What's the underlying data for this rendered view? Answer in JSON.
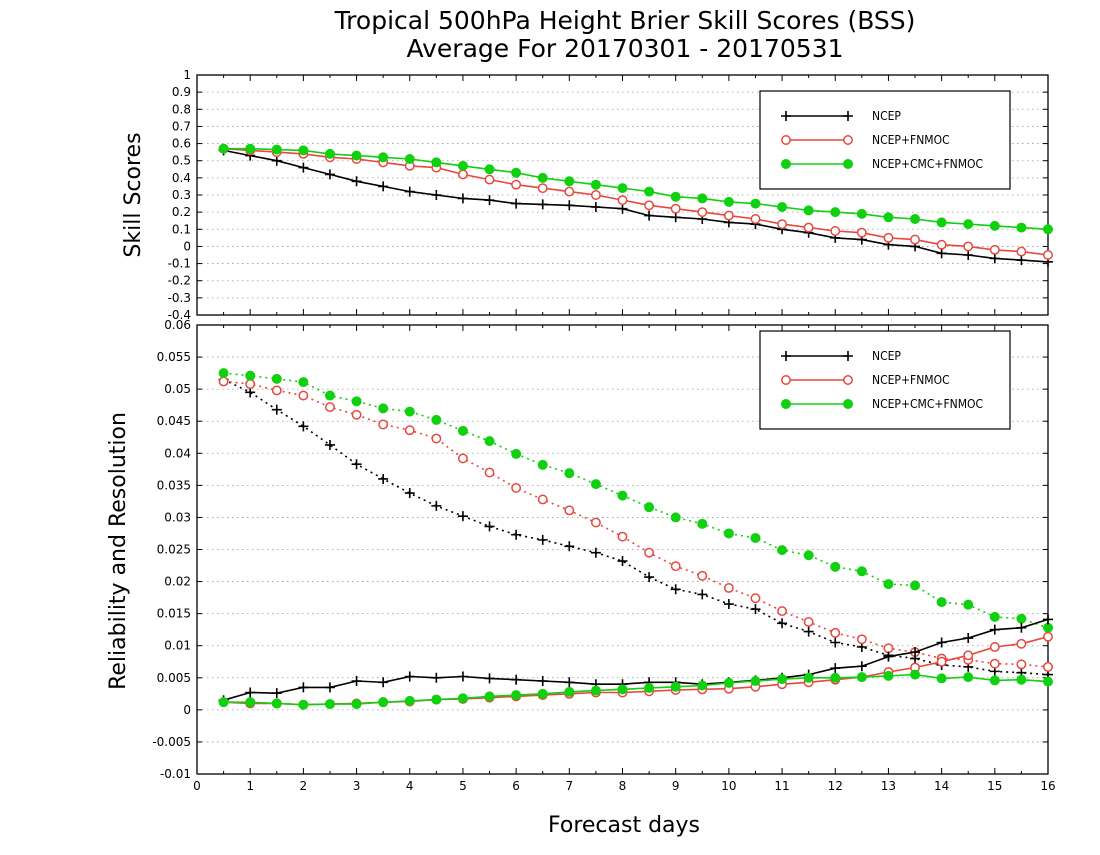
{
  "colors": {
    "NCEP": "#000000",
    "NCEP+FNMOC": "#e8473f",
    "NCEP+CMC+FNMOC": "#10d010",
    "grid": "#999999"
  },
  "chart_data": [
    {
      "type": "line",
      "title": "Tropical 500hPa Height Brier Skill Scores (BSS)",
      "subtitle": "Average For 20170301 - 20170531",
      "xlabel": "",
      "ylabel": "Skill Scores",
      "xlim": [
        0,
        16
      ],
      "ylim": [
        -0.4,
        1
      ],
      "yticks": [
        -0.4,
        -0.3,
        -0.2,
        -0.1,
        0,
        0.1,
        0.2,
        0.3,
        0.4,
        0.5,
        0.6,
        0.7,
        0.8,
        0.9,
        1
      ],
      "ytick_labels": [
        "-0.4",
        "-0.3",
        "-0.2",
        "-0.1",
        "0",
        "0.1",
        "0.2",
        "0.3",
        "0.4",
        "0.5",
        "0.6",
        "0.7",
        "0.8",
        "0.9",
        "1"
      ],
      "grid": "horizontal dotted",
      "legend": "top-right",
      "x": [
        0.5,
        1,
        1.5,
        2,
        2.5,
        3,
        3.5,
        4,
        4.5,
        5,
        5.5,
        6,
        6.5,
        7,
        7.5,
        8,
        8.5,
        9,
        9.5,
        10,
        10.5,
        11,
        11.5,
        12,
        12.5,
        13,
        13.5,
        14,
        14.5,
        15,
        15.5,
        16
      ],
      "series": [
        {
          "name": "NCEP",
          "marker": "plus",
          "line": "solid",
          "values": [
            0.56,
            0.53,
            0.5,
            0.46,
            0.42,
            0.38,
            0.35,
            0.32,
            0.3,
            0.28,
            0.27,
            0.25,
            0.245,
            0.24,
            0.23,
            0.22,
            0.18,
            0.17,
            0.16,
            0.14,
            0.13,
            0.1,
            0.08,
            0.05,
            0.04,
            0.01,
            0.0,
            -0.04,
            -0.05,
            -0.07,
            -0.08,
            -0.09
          ]
        },
        {
          "name": "NCEP+FNMOC",
          "marker": "open-circle",
          "line": "solid",
          "values": [
            0.57,
            0.56,
            0.55,
            0.54,
            0.52,
            0.51,
            0.49,
            0.47,
            0.46,
            0.42,
            0.39,
            0.36,
            0.34,
            0.32,
            0.3,
            0.27,
            0.24,
            0.22,
            0.2,
            0.18,
            0.16,
            0.13,
            0.11,
            0.09,
            0.08,
            0.05,
            0.04,
            0.01,
            0.0,
            -0.02,
            -0.03,
            -0.05
          ]
        },
        {
          "name": "NCEP+CMC+FNMOC",
          "marker": "filled-circle",
          "line": "solid",
          "values": [
            0.57,
            0.57,
            0.565,
            0.56,
            0.54,
            0.53,
            0.52,
            0.51,
            0.49,
            0.47,
            0.45,
            0.43,
            0.4,
            0.38,
            0.36,
            0.34,
            0.32,
            0.29,
            0.28,
            0.26,
            0.25,
            0.23,
            0.21,
            0.2,
            0.19,
            0.17,
            0.16,
            0.14,
            0.13,
            0.12,
            0.11,
            0.1
          ]
        }
      ]
    },
    {
      "type": "line",
      "title": "",
      "xlabel": "Forecast days",
      "ylabel": "Reliability and Resolution",
      "xlim": [
        0,
        16
      ],
      "ylim": [
        -0.01,
        0.06
      ],
      "xticks": [
        0,
        1,
        2,
        3,
        4,
        5,
        6,
        7,
        8,
        9,
        10,
        11,
        12,
        13,
        14,
        15,
        16
      ],
      "xtick_labels": [
        "0",
        "1",
        "2",
        "3",
        "4",
        "5",
        "6",
        "7",
        "8",
        "9",
        "10",
        "11",
        "12",
        "13",
        "14",
        "15",
        "16"
      ],
      "yticks": [
        -0.01,
        -0.005,
        0,
        0.005,
        0.01,
        0.015,
        0.02,
        0.025,
        0.03,
        0.035,
        0.04,
        0.045,
        0.05,
        0.055,
        0.06
      ],
      "ytick_labels": [
        "-0.01",
        "-0.005",
        "0",
        "0.005",
        "0.01",
        "0.015",
        "0.02",
        "0.025",
        "0.03",
        "0.035",
        "0.04",
        "0.045",
        "0.05",
        "0.055",
        "0.06"
      ],
      "grid": "horizontal dotted",
      "legend": "top-right",
      "x": [
        0.5,
        1,
        1.5,
        2,
        2.5,
        3,
        3.5,
        4,
        4.5,
        5,
        5.5,
        6,
        6.5,
        7,
        7.5,
        8,
        8.5,
        9,
        9.5,
        10,
        10.5,
        11,
        11.5,
        12,
        12.5,
        13,
        13.5,
        14,
        14.5,
        15,
        15.5,
        16
      ],
      "series": [
        {
          "name": "NCEP",
          "metric": "resolution",
          "marker": "plus",
          "line": "dotted",
          "values": [
            0.0515,
            0.0495,
            0.0468,
            0.0442,
            0.0413,
            0.0383,
            0.036,
            0.0338,
            0.0318,
            0.0302,
            0.0286,
            0.0273,
            0.0265,
            0.0255,
            0.0245,
            0.0232,
            0.0207,
            0.0188,
            0.018,
            0.0165,
            0.0157,
            0.0135,
            0.0122,
            0.0105,
            0.0098,
            0.0085,
            0.008,
            0.007,
            0.0067,
            0.006,
            0.0058,
            0.0055
          ]
        },
        {
          "name": "NCEP+FNMOC",
          "metric": "resolution",
          "marker": "open-circle",
          "line": "dotted",
          "values": [
            0.0512,
            0.0508,
            0.0498,
            0.049,
            0.0472,
            0.046,
            0.0445,
            0.0436,
            0.0423,
            0.0392,
            0.037,
            0.0346,
            0.0328,
            0.0311,
            0.0292,
            0.027,
            0.0245,
            0.0224,
            0.0209,
            0.019,
            0.0174,
            0.0154,
            0.0137,
            0.012,
            0.011,
            0.0096,
            0.009,
            0.008,
            0.0078,
            0.0072,
            0.0071,
            0.0067
          ]
        },
        {
          "name": "NCEP+CMC+FNMOC",
          "metric": "resolution",
          "marker": "filled-circle",
          "line": "dotted",
          "values": [
            0.0525,
            0.0521,
            0.0516,
            0.0511,
            0.049,
            0.0481,
            0.047,
            0.0465,
            0.0452,
            0.0435,
            0.0419,
            0.0399,
            0.0382,
            0.0369,
            0.0352,
            0.0334,
            0.0316,
            0.03,
            0.029,
            0.0275,
            0.0268,
            0.0249,
            0.0241,
            0.0223,
            0.0216,
            0.0196,
            0.0194,
            0.0168,
            0.0164,
            0.0145,
            0.0142,
            0.0128
          ]
        },
        {
          "name": "NCEP",
          "metric": "reliability",
          "marker": "plus",
          "line": "solid",
          "values": [
            0.0015,
            0.0027,
            0.0026,
            0.0035,
            0.0035,
            0.0045,
            0.0043,
            0.0052,
            0.005,
            0.0052,
            0.0049,
            0.0047,
            0.0045,
            0.0043,
            0.004,
            0.004,
            0.0043,
            0.0043,
            0.004,
            0.0043,
            0.0046,
            0.005,
            0.0055,
            0.0065,
            0.0068,
            0.0083,
            0.009,
            0.0105,
            0.0112,
            0.0125,
            0.0128,
            0.0141
          ]
        },
        {
          "name": "NCEP+FNMOC",
          "metric": "reliability",
          "marker": "open-circle",
          "line": "solid",
          "values": [
            0.0012,
            0.001,
            0.001,
            0.0008,
            0.0009,
            0.001,
            0.0012,
            0.0013,
            0.0016,
            0.0017,
            0.0019,
            0.0021,
            0.0023,
            0.0025,
            0.0027,
            0.0027,
            0.0029,
            0.0031,
            0.0032,
            0.0033,
            0.0036,
            0.004,
            0.0043,
            0.0047,
            0.0051,
            0.0059,
            0.0066,
            0.0075,
            0.0085,
            0.0098,
            0.0103,
            0.0114
          ]
        },
        {
          "name": "NCEP+CMC+FNMOC",
          "metric": "reliability",
          "marker": "filled-circle",
          "line": "solid",
          "values": [
            0.0012,
            0.0012,
            0.001,
            0.0008,
            0.0009,
            0.0009,
            0.0012,
            0.0014,
            0.0016,
            0.0018,
            0.0021,
            0.0023,
            0.0025,
            0.0028,
            0.003,
            0.0032,
            0.0034,
            0.0036,
            0.0038,
            0.0042,
            0.0045,
            0.0048,
            0.005,
            0.005,
            0.0051,
            0.0053,
            0.0055,
            0.0049,
            0.0051,
            0.0046,
            0.0047,
            0.0044
          ]
        }
      ]
    }
  ]
}
